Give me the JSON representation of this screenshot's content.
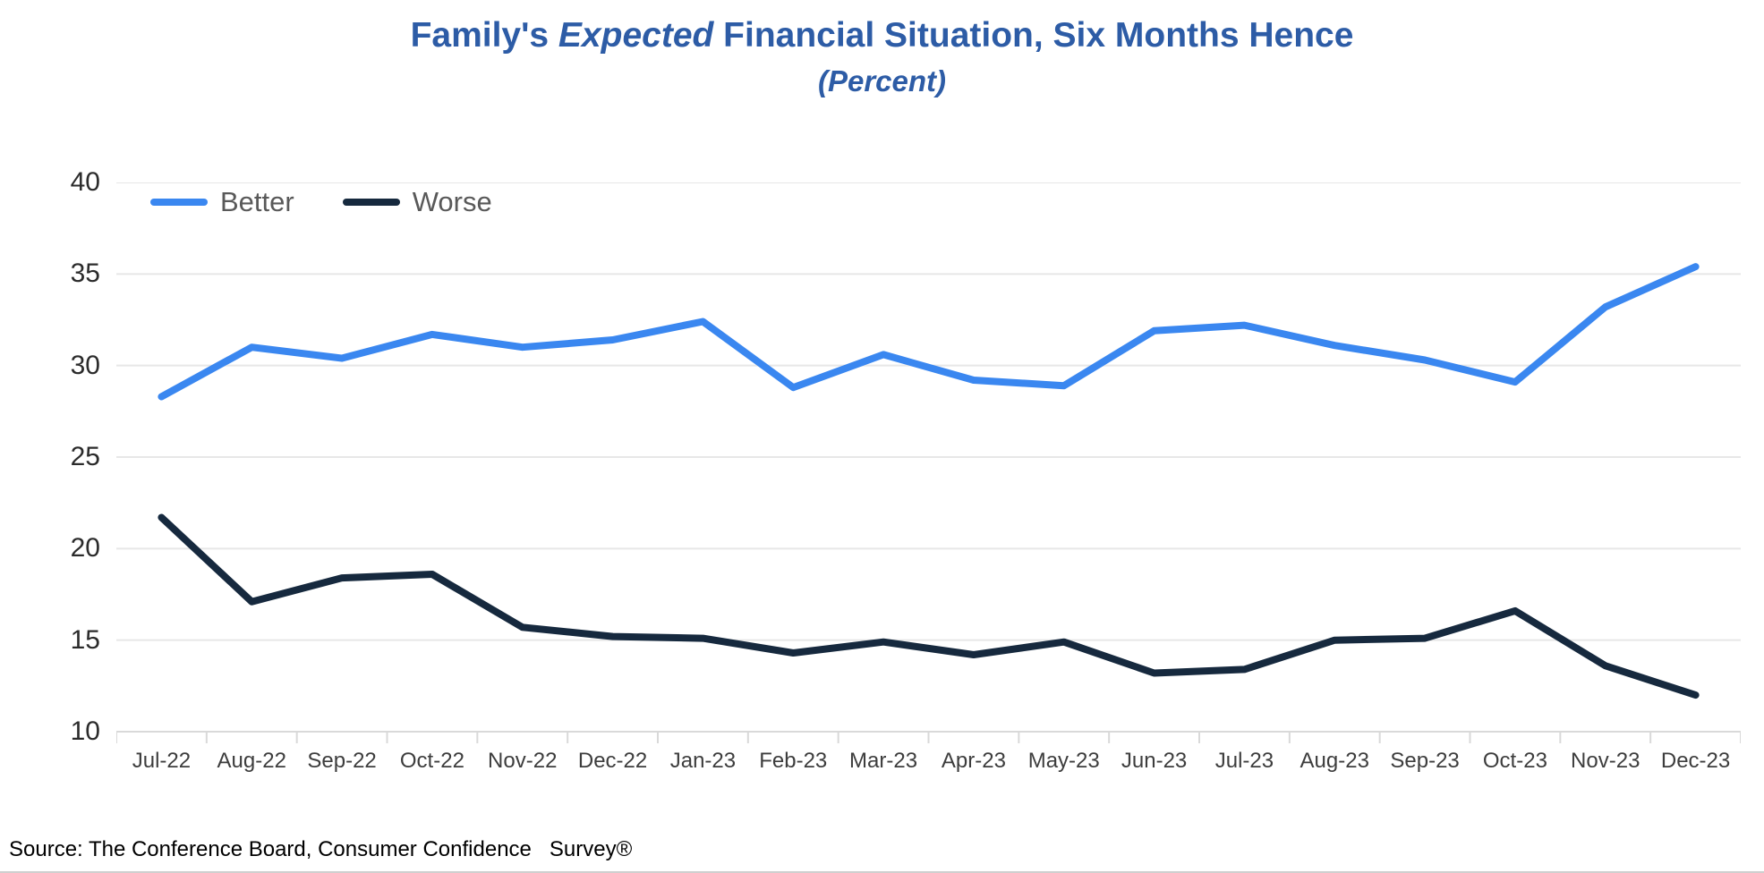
{
  "header": {
    "title_prefix": "Family's ",
    "title_italic": "Expected",
    "title_suffix": " Financial Situation, Six Months Hence",
    "subtitle": "(Percent)"
  },
  "legend": {
    "items": [
      {
        "label": "Better",
        "color": "#3a87f0"
      },
      {
        "label": "Worse",
        "color": "#16293e"
      }
    ]
  },
  "source": "Source: The Conference Board, Consumer Confidence   Survey®",
  "colors": {
    "title": "#2d5ca6",
    "better_line": "#3a87f0",
    "worse_line": "#16293e",
    "gridline": "#e7e7e7",
    "axis_line": "#d9d9d9",
    "tick_mark": "#d9d9d9",
    "y_label": "#2b2b2b",
    "x_label": "#3d3d3d",
    "legend_text": "#595959",
    "background": "#ffffff"
  },
  "chart_data": {
    "type": "line",
    "title": "Family's Expected Financial Situation, Six Months Hence",
    "subtitle": "(Percent)",
    "categories": [
      "Jul-22",
      "Aug-22",
      "Sep-22",
      "Oct-22",
      "Nov-22",
      "Dec-22",
      "Jan-23",
      "Feb-23",
      "Mar-23",
      "Apr-23",
      "May-23",
      "Jun-23",
      "Jul-23",
      "Aug-23",
      "Sep-23",
      "Oct-23",
      "Nov-23",
      "Dec-23"
    ],
    "series": [
      {
        "name": "Better",
        "color": "#3a87f0",
        "values": [
          28.3,
          31.0,
          30.4,
          31.7,
          31.0,
          31.4,
          32.4,
          28.8,
          30.6,
          29.2,
          28.9,
          31.9,
          32.2,
          31.1,
          30.3,
          29.1,
          33.2,
          35.4
        ]
      },
      {
        "name": "Worse",
        "color": "#16293e",
        "values": [
          21.7,
          17.1,
          18.4,
          18.6,
          15.7,
          15.2,
          15.1,
          14.3,
          14.9,
          14.2,
          14.9,
          13.2,
          13.4,
          15.0,
          15.1,
          16.6,
          13.6,
          12.0
        ]
      }
    ],
    "xlabel": "",
    "ylabel": "",
    "ylim": [
      10,
      40
    ],
    "y_ticks": [
      40,
      35,
      30,
      25,
      20,
      15,
      10
    ],
    "grid": "horizontal",
    "legend_position": "top-left"
  }
}
